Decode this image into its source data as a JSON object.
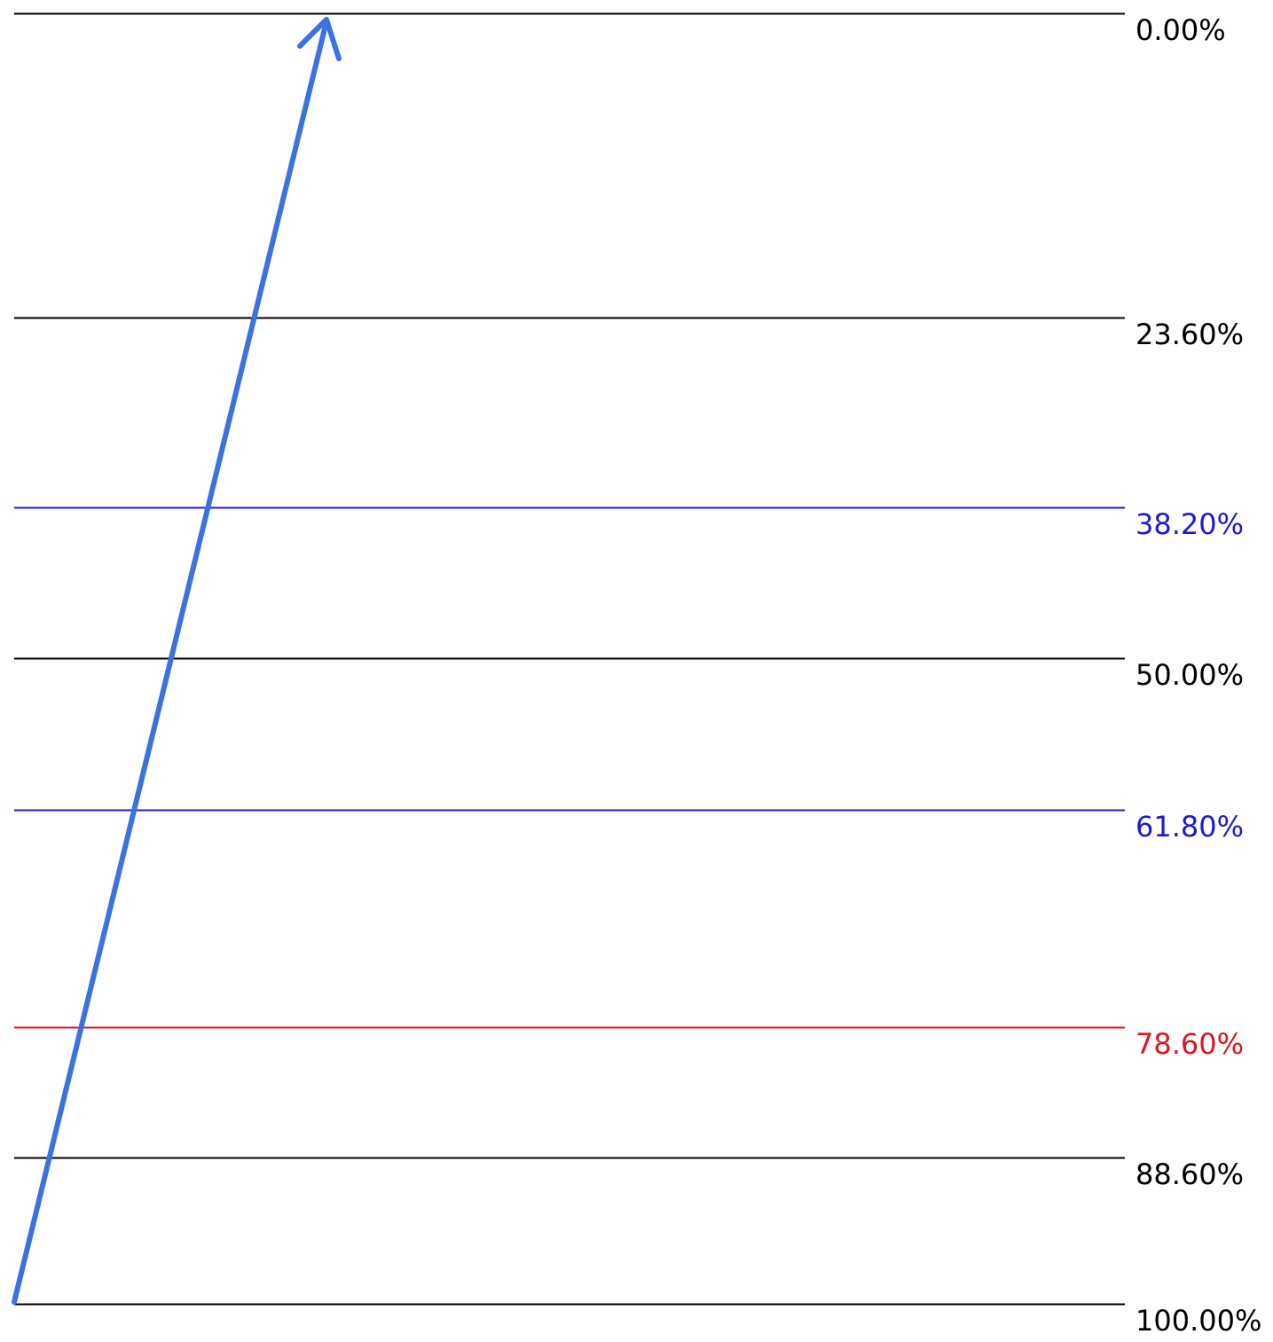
{
  "levels": [
    {
      "value": 0.0,
      "label": "0.00%",
      "color": "#000000"
    },
    {
      "value": 23.6,
      "label": "23.60%",
      "color": "#000000"
    },
    {
      "value": 38.2,
      "label": "38.20%",
      "color": "#1a1ad6"
    },
    {
      "value": 50.0,
      "label": "50.00%",
      "color": "#000000"
    },
    {
      "value": 61.8,
      "label": "61.80%",
      "color": "#1a1ad6"
    },
    {
      "value": 78.6,
      "label": "78.60%",
      "color": "#e0141e"
    },
    {
      "value": 88.6,
      "label": "88.60%",
      "color": "#000000"
    },
    {
      "value": 100.0,
      "label": "100.00%",
      "color": "#000000"
    }
  ],
  "arrow": {
    "color": "#3a72e0",
    "from_level": 100.0,
    "to_level": 0.0,
    "direction": "up"
  }
}
